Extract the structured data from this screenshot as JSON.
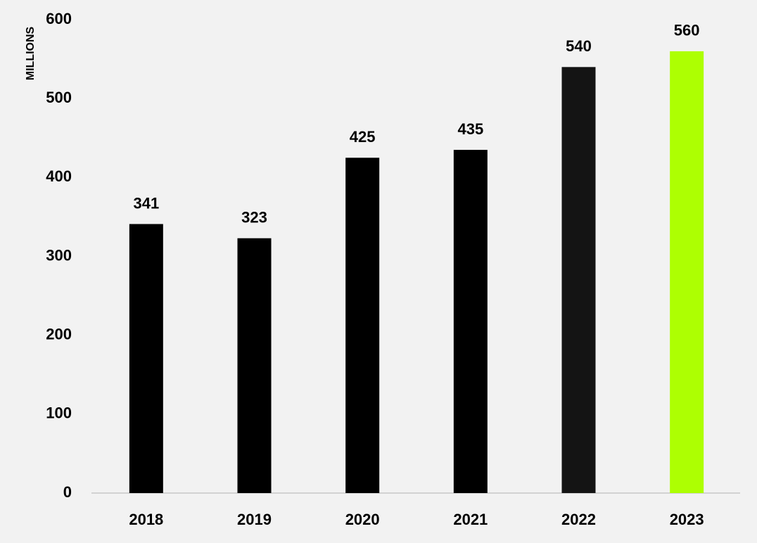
{
  "chart_data": {
    "type": "bar",
    "y_label": "MILLIONS",
    "categories": [
      "2018",
      "2019",
      "2020",
      "2021",
      "2022",
      "2023"
    ],
    "values": [
      341,
      323,
      425,
      435,
      540,
      560
    ],
    "colors": [
      "#000000",
      "#000000",
      "#000000",
      "#000000",
      "#141414",
      "#adff02"
    ],
    "ylim": [
      0,
      600
    ],
    "yticks": [
      0,
      100,
      200,
      300,
      400,
      500,
      600
    ],
    "grid": false
  }
}
